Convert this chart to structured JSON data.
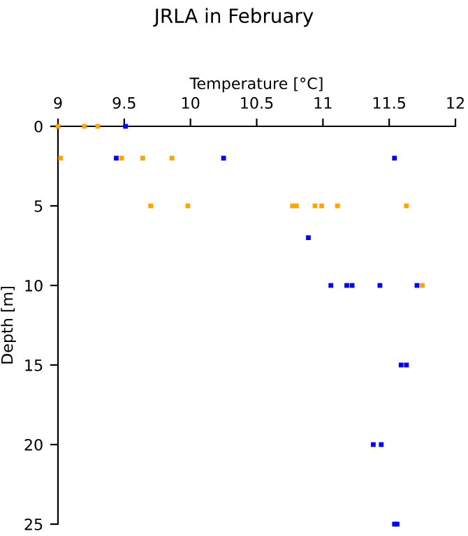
{
  "chart_data": {
    "type": "scatter",
    "title": "JRLA in February",
    "xlabel": "Temperature [°C]",
    "ylabel": "Depth [m]",
    "xlim": [
      9,
      12
    ],
    "xticks": [
      9,
      9.5,
      10,
      10.5,
      11,
      11.5,
      12
    ],
    "ylim": [
      25,
      0
    ],
    "yticks": [
      0,
      5,
      10,
      15,
      20,
      25
    ],
    "marker": "square",
    "grid": false,
    "legend": false,
    "series": [
      {
        "color": "#ffa500",
        "x": [
          9.0,
          9.2,
          9.3,
          9.02,
          9.48,
          9.64,
          9.86,
          9.7,
          9.98,
          10.77,
          10.8,
          10.94,
          10.99,
          11.11,
          11.63,
          11.75
        ],
        "values": [
          0,
          0,
          0,
          2,
          2,
          2,
          2,
          5,
          5,
          5,
          5,
          5,
          5,
          5,
          5,
          10
        ]
      },
      {
        "color": "#0000ff",
        "x": [
          9.51,
          9.44,
          10.25,
          11.54,
          10.89,
          11.06,
          11.18,
          11.22,
          11.43,
          11.71,
          11.59,
          11.63,
          11.38,
          11.44,
          11.54,
          11.56
        ],
        "values": [
          0,
          2,
          2,
          2,
          7,
          10,
          10,
          10,
          10,
          10,
          15,
          15,
          20,
          20,
          25,
          25
        ]
      }
    ]
  }
}
